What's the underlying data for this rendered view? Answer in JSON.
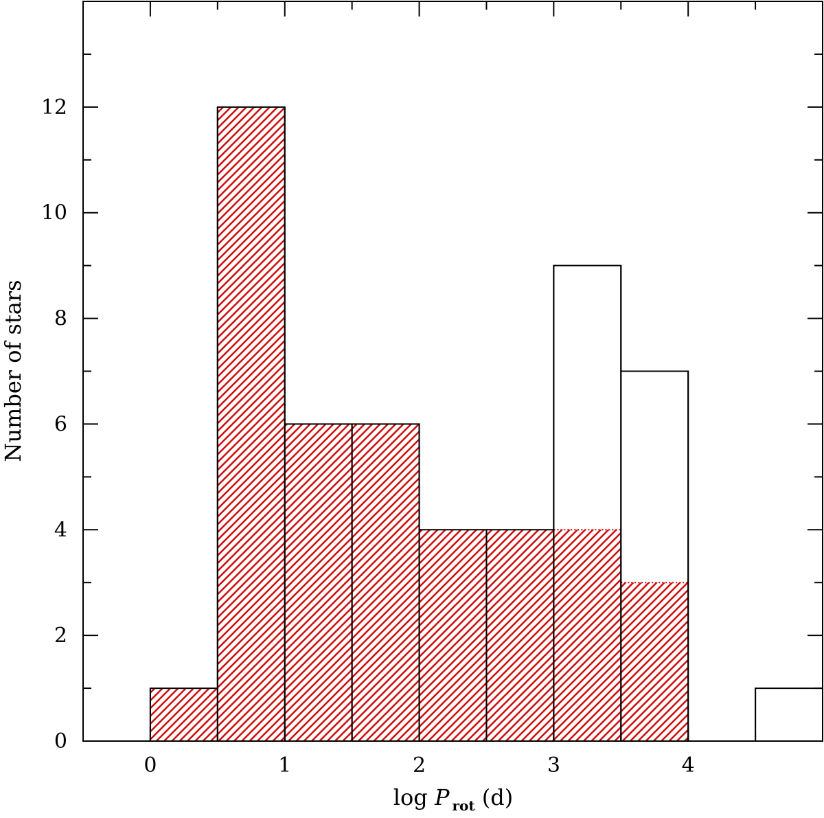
{
  "chart_data": {
    "type": "bar",
    "xlabel": {
      "prefix": "log ",
      "symbol": "P",
      "subscript": "rot",
      "suffix": " (d)"
    },
    "ylabel": "Number of stars",
    "xlim": [
      -0.5,
      5.0
    ],
    "ylim": [
      0,
      14
    ],
    "x_ticks": [
      0,
      1,
      2,
      3,
      4
    ],
    "y_ticks": [
      0,
      2,
      4,
      6,
      8,
      10,
      12
    ],
    "bin_edges": [
      0,
      0.5,
      1,
      1.5,
      2,
      2.5,
      3,
      3.5,
      4,
      4.5,
      5
    ],
    "series": [
      {
        "style": "open-outline",
        "color": "#000000",
        "values": [
          1,
          12,
          6,
          6,
          4,
          4,
          9,
          7,
          0,
          1
        ]
      },
      {
        "style": "hatched",
        "color": "#cc0000",
        "values": [
          1,
          12,
          6,
          6,
          4,
          4,
          4,
          3,
          0,
          0
        ]
      }
    ]
  }
}
